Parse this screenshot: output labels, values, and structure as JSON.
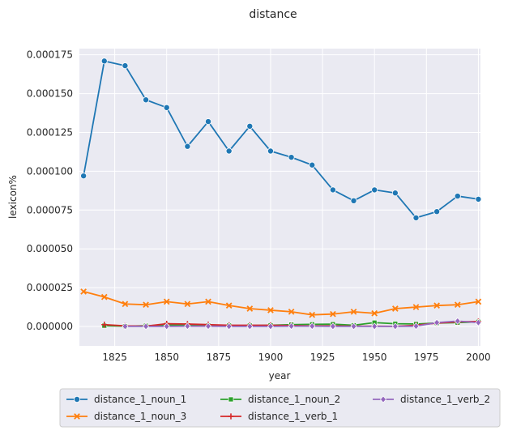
{
  "chart_data": {
    "type": "line",
    "title": "distance",
    "xlabel": "year",
    "ylabel": "lexicon%",
    "xlim": [
      1808,
      2001
    ],
    "ylim": [
      -1.25e-05,
      0.000179
    ],
    "xticks": [
      1825,
      1850,
      1875,
      1900,
      1925,
      1950,
      1975,
      2000
    ],
    "yticks": [
      0,
      2.5e-05,
      5e-05,
      7.5e-05,
      0.0001,
      0.000125,
      0.00015,
      0.000175
    ],
    "ytick_labels": [
      "0.000000",
      "0.000025",
      "0.000050",
      "0.000075",
      "0.000100",
      "0.000125",
      "0.000150",
      "0.000175"
    ],
    "grid": true,
    "legend_position": "bottom",
    "x": [
      1810,
      1820,
      1830,
      1840,
      1850,
      1860,
      1870,
      1880,
      1890,
      1900,
      1910,
      1920,
      1930,
      1940,
      1950,
      1960,
      1970,
      1980,
      1990,
      2000
    ],
    "series": [
      {
        "name": "distance_1_noun_1",
        "color": "#1f77b4",
        "marker": "circle",
        "values": [
          9.7e-05,
          0.000171,
          0.000168,
          0.000146,
          0.000141,
          0.000116,
          0.000132,
          0.000113,
          0.000129,
          0.000113,
          0.000109,
          0.000104,
          8.8e-05,
          8.1e-05,
          8.8e-05,
          8.6e-05,
          7e-05,
          7.4e-05,
          8.4e-05,
          8.2e-05
        ]
      },
      {
        "name": "distance_1_noun_3",
        "color": "#ff7f0e",
        "marker": "x",
        "values": [
          2.25e-05,
          1.9e-05,
          1.45e-05,
          1.4e-05,
          1.6e-05,
          1.45e-05,
          1.6e-05,
          1.35e-05,
          1.15e-05,
          1.05e-05,
          9.5e-06,
          7.5e-06,
          8e-06,
          9.5e-06,
          8.5e-06,
          1.15e-05,
          1.25e-05,
          1.35e-05,
          1.4e-05,
          1.6e-05
        ]
      },
      {
        "name": "distance_1_noun_2",
        "color": "#2ca02c",
        "marker": "square",
        "values": [
          null,
          5e-07,
          2e-07,
          5e-07,
          1e-06,
          8e-07,
          6e-07,
          6e-07,
          6e-07,
          8e-07,
          1.2e-06,
          1.4e-06,
          1.5e-06,
          8e-07,
          2.5e-06,
          1.8e-06,
          1.6e-06,
          2.2e-06,
          2.5e-06,
          3e-06
        ]
      },
      {
        "name": "distance_1_verb_1",
        "color": "#d62728",
        "marker": "plus",
        "values": [
          null,
          1.2e-06,
          4e-07,
          2e-07,
          1.8e-06,
          1.6e-06,
          1.2e-06,
          8e-07,
          8e-07,
          8e-07,
          6e-07,
          4e-07,
          4e-07,
          2e-07,
          2e-07,
          1e-07,
          8e-07,
          2.2e-06,
          3e-06,
          3.2e-06
        ]
      },
      {
        "name": "distance_1_verb_2",
        "color": "#9467bd",
        "marker": "diamond",
        "values": [
          null,
          null,
          1e-07,
          1e-07,
          1e-07,
          2e-07,
          2e-07,
          1e-07,
          1e-07,
          1e-07,
          2e-07,
          2e-07,
          1e-07,
          1e-07,
          1e-07,
          1e-07,
          2e-07,
          2.5e-06,
          3.5e-06,
          2.5e-06
        ]
      }
    ]
  }
}
